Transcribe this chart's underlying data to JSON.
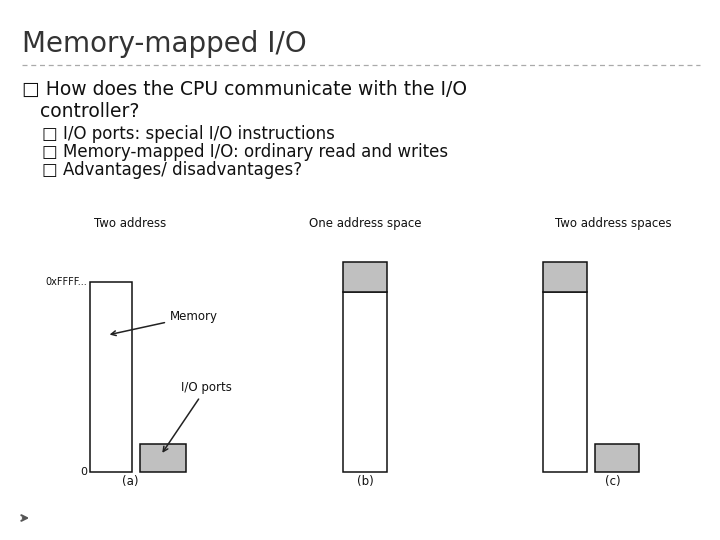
{
  "title": "Memory-mapped I/O",
  "bg_color": "#ffffff",
  "title_color": "#333333",
  "title_fontsize": 20,
  "divider_color": "#aaaaaa",
  "bullet_color": "#111111",
  "bullet_fontsize": 13.5,
  "sub_bullet_fontsize": 12,
  "diagram_title_a": "Two address",
  "diagram_title_b": "One address space",
  "diagram_title_c": "Two address spaces",
  "diagram_label_a": "(a)",
  "diagram_label_b": "(b)",
  "diagram_label_c": "(c)",
  "gray_fill": "#c0c0c0",
  "white_fill": "#ffffff",
  "box_edge": "#111111",
  "annotation_memory": "Memory",
  "annotation_io": "I/O ports",
  "label_0xFFFF": "0xFFFF...",
  "label_0": "0"
}
